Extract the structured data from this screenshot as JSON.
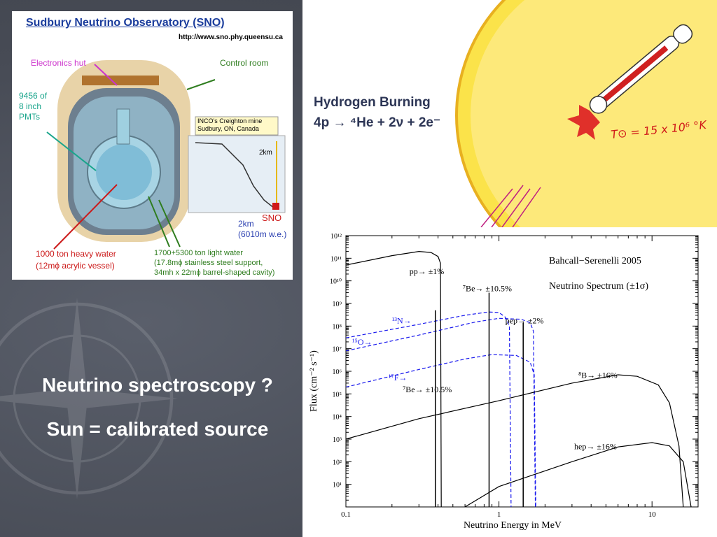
{
  "slide": {
    "question": "Neutrino spectroscopy ?",
    "statement": "Sun = calibrated source"
  },
  "sno": {
    "title": "Sudbury Neutrino Observatory (SNO)",
    "url": "http://www.sno.phy.queensu.ca",
    "electronics_hut": "Electronics hut",
    "control_room": "Control room",
    "pmts": [
      "9456 of",
      "8 inch",
      "PMTs"
    ],
    "mine": [
      "INCO's Creighton mine",
      "Sudbury, ON, Canada"
    ],
    "depth_label": "2km",
    "sno_label": "SNO",
    "depth": [
      "2km",
      "(6010m w.e.)"
    ],
    "heavy_water": [
      "1000 ton heavy water",
      "(12mϕ acrylic vessel)"
    ],
    "light_water": [
      "1700+5300 ton light water",
      "(17.8mϕ stainless steel support,",
      "34mh x 22mϕ barrel-shaped cavity)"
    ]
  },
  "sun": {
    "title": "Hydrogen Burning",
    "reaction": "4p → ⁴He + 2ν + 2e⁻",
    "temperature": "T⊙ = 15 x 10⁶ °K"
  },
  "colors": {
    "background": "#4b4f5a",
    "sno_title": "#1a3c9c",
    "sno_label_green": "#2f7d1f",
    "sno_label_red": "#cc1a1a",
    "sno_label_magenta": "#cc33cc",
    "sno_label_teal": "#1aa58c",
    "sno_label_blue": "#2a3fb0",
    "sun_fill": "#fbe34a",
    "spectrum_blue": "#1a1aee"
  },
  "chart_data": {
    "type": "line",
    "title": "Bahcall−Serenelli 2005",
    "subtitle": "Neutrino Spectrum (±1σ)",
    "xlabel": "Neutrino Energy in MeV",
    "ylabel": "Flux (cm⁻² s⁻¹)",
    "xscale": "log",
    "yscale": "log",
    "xlim": [
      0.1,
      20
    ],
    "ylim": [
      1,
      1000000000000
    ],
    "grid": false,
    "legend": "none",
    "x_ticks": [
      "0.1",
      "1",
      "10"
    ],
    "y_ticks": [
      "10¹",
      "10²",
      "10³",
      "10⁴",
      "10⁵",
      "10⁶",
      "10⁷",
      "10⁸",
      "10⁹",
      "10¹⁰",
      "10¹¹",
      "10¹²"
    ],
    "continuum_series": [
      {
        "name": "pp",
        "label": "pp→ ±1%",
        "style": "solid",
        "color": "#000000",
        "points": [
          [
            0.1,
            50000000000
          ],
          [
            0.2,
            130000000000
          ],
          [
            0.3,
            200000000000
          ],
          [
            0.36,
            180000000000
          ],
          [
            0.4,
            120000000000
          ],
          [
            0.415,
            60000000000
          ],
          [
            0.42,
            1
          ]
        ]
      },
      {
        "name": "13N",
        "label": "¹³N→",
        "style": "dashed",
        "color": "#1a1aee",
        "points": [
          [
            0.1,
            30000000
          ],
          [
            0.3,
            120000000
          ],
          [
            0.6,
            300000000
          ],
          [
            0.85,
            420000000
          ],
          [
            1.0,
            400000000
          ],
          [
            1.1,
            250000000
          ],
          [
            1.17,
            100000000
          ],
          [
            1.2,
            1
          ]
        ]
      },
      {
        "name": "15O",
        "label": "¹⁵O→",
        "style": "dashed",
        "color": "#1a1aee",
        "points": [
          [
            0.1,
            8000000
          ],
          [
            0.3,
            40000000
          ],
          [
            0.7,
            150000000
          ],
          [
            1.0,
            220000000
          ],
          [
            1.4,
            200000000
          ],
          [
            1.6,
            140000000
          ],
          [
            1.68,
            60000000
          ],
          [
            1.73,
            1
          ]
        ]
      },
      {
        "name": "17F",
        "label": "¹⁷F→",
        "style": "dashed",
        "color": "#1a1aee",
        "points": [
          [
            0.1,
            200000
          ],
          [
            0.3,
            1200000
          ],
          [
            0.6,
            3500000
          ],
          [
            0.9,
            5500000
          ],
          [
            1.3,
            5000000
          ],
          [
            1.6,
            2500000
          ],
          [
            1.7,
            700000
          ],
          [
            1.74,
            1
          ]
        ]
      },
      {
        "name": "8B",
        "label": "⁸B→ ±16%",
        "style": "solid",
        "color": "#000000",
        "points": [
          [
            0.1,
            1000
          ],
          [
            0.3,
            8000
          ],
          [
            1,
            50000
          ],
          [
            3,
            300000
          ],
          [
            6,
            700000
          ],
          [
            8,
            600000
          ],
          [
            11,
            250000
          ],
          [
            13,
            40000
          ],
          [
            15,
            500
          ],
          [
            16,
            1
          ]
        ]
      },
      {
        "name": "hep",
        "label": "hep→ ±16%",
        "style": "solid",
        "color": "#000000",
        "points": [
          [
            0.6,
            1
          ],
          [
            1,
            8
          ],
          [
            3,
            100
          ],
          [
            6,
            450
          ],
          [
            10,
            700
          ],
          [
            13,
            500
          ],
          [
            16,
            100
          ],
          [
            18,
            1
          ]
        ]
      }
    ],
    "line_series": [
      {
        "name": "7Be (0.384 MeV)",
        "label": "⁷Be→ ±10.5%",
        "energy": 0.384,
        "flux": 500000000
      },
      {
        "name": "7Be (0.862 MeV)",
        "label": "⁷Be→ ±10.5%",
        "energy": 0.862,
        "flux": 3000000000
      },
      {
        "name": "pep",
        "label": "pep→ ±2%",
        "energy": 1.44,
        "flux": 140000000
      }
    ]
  }
}
